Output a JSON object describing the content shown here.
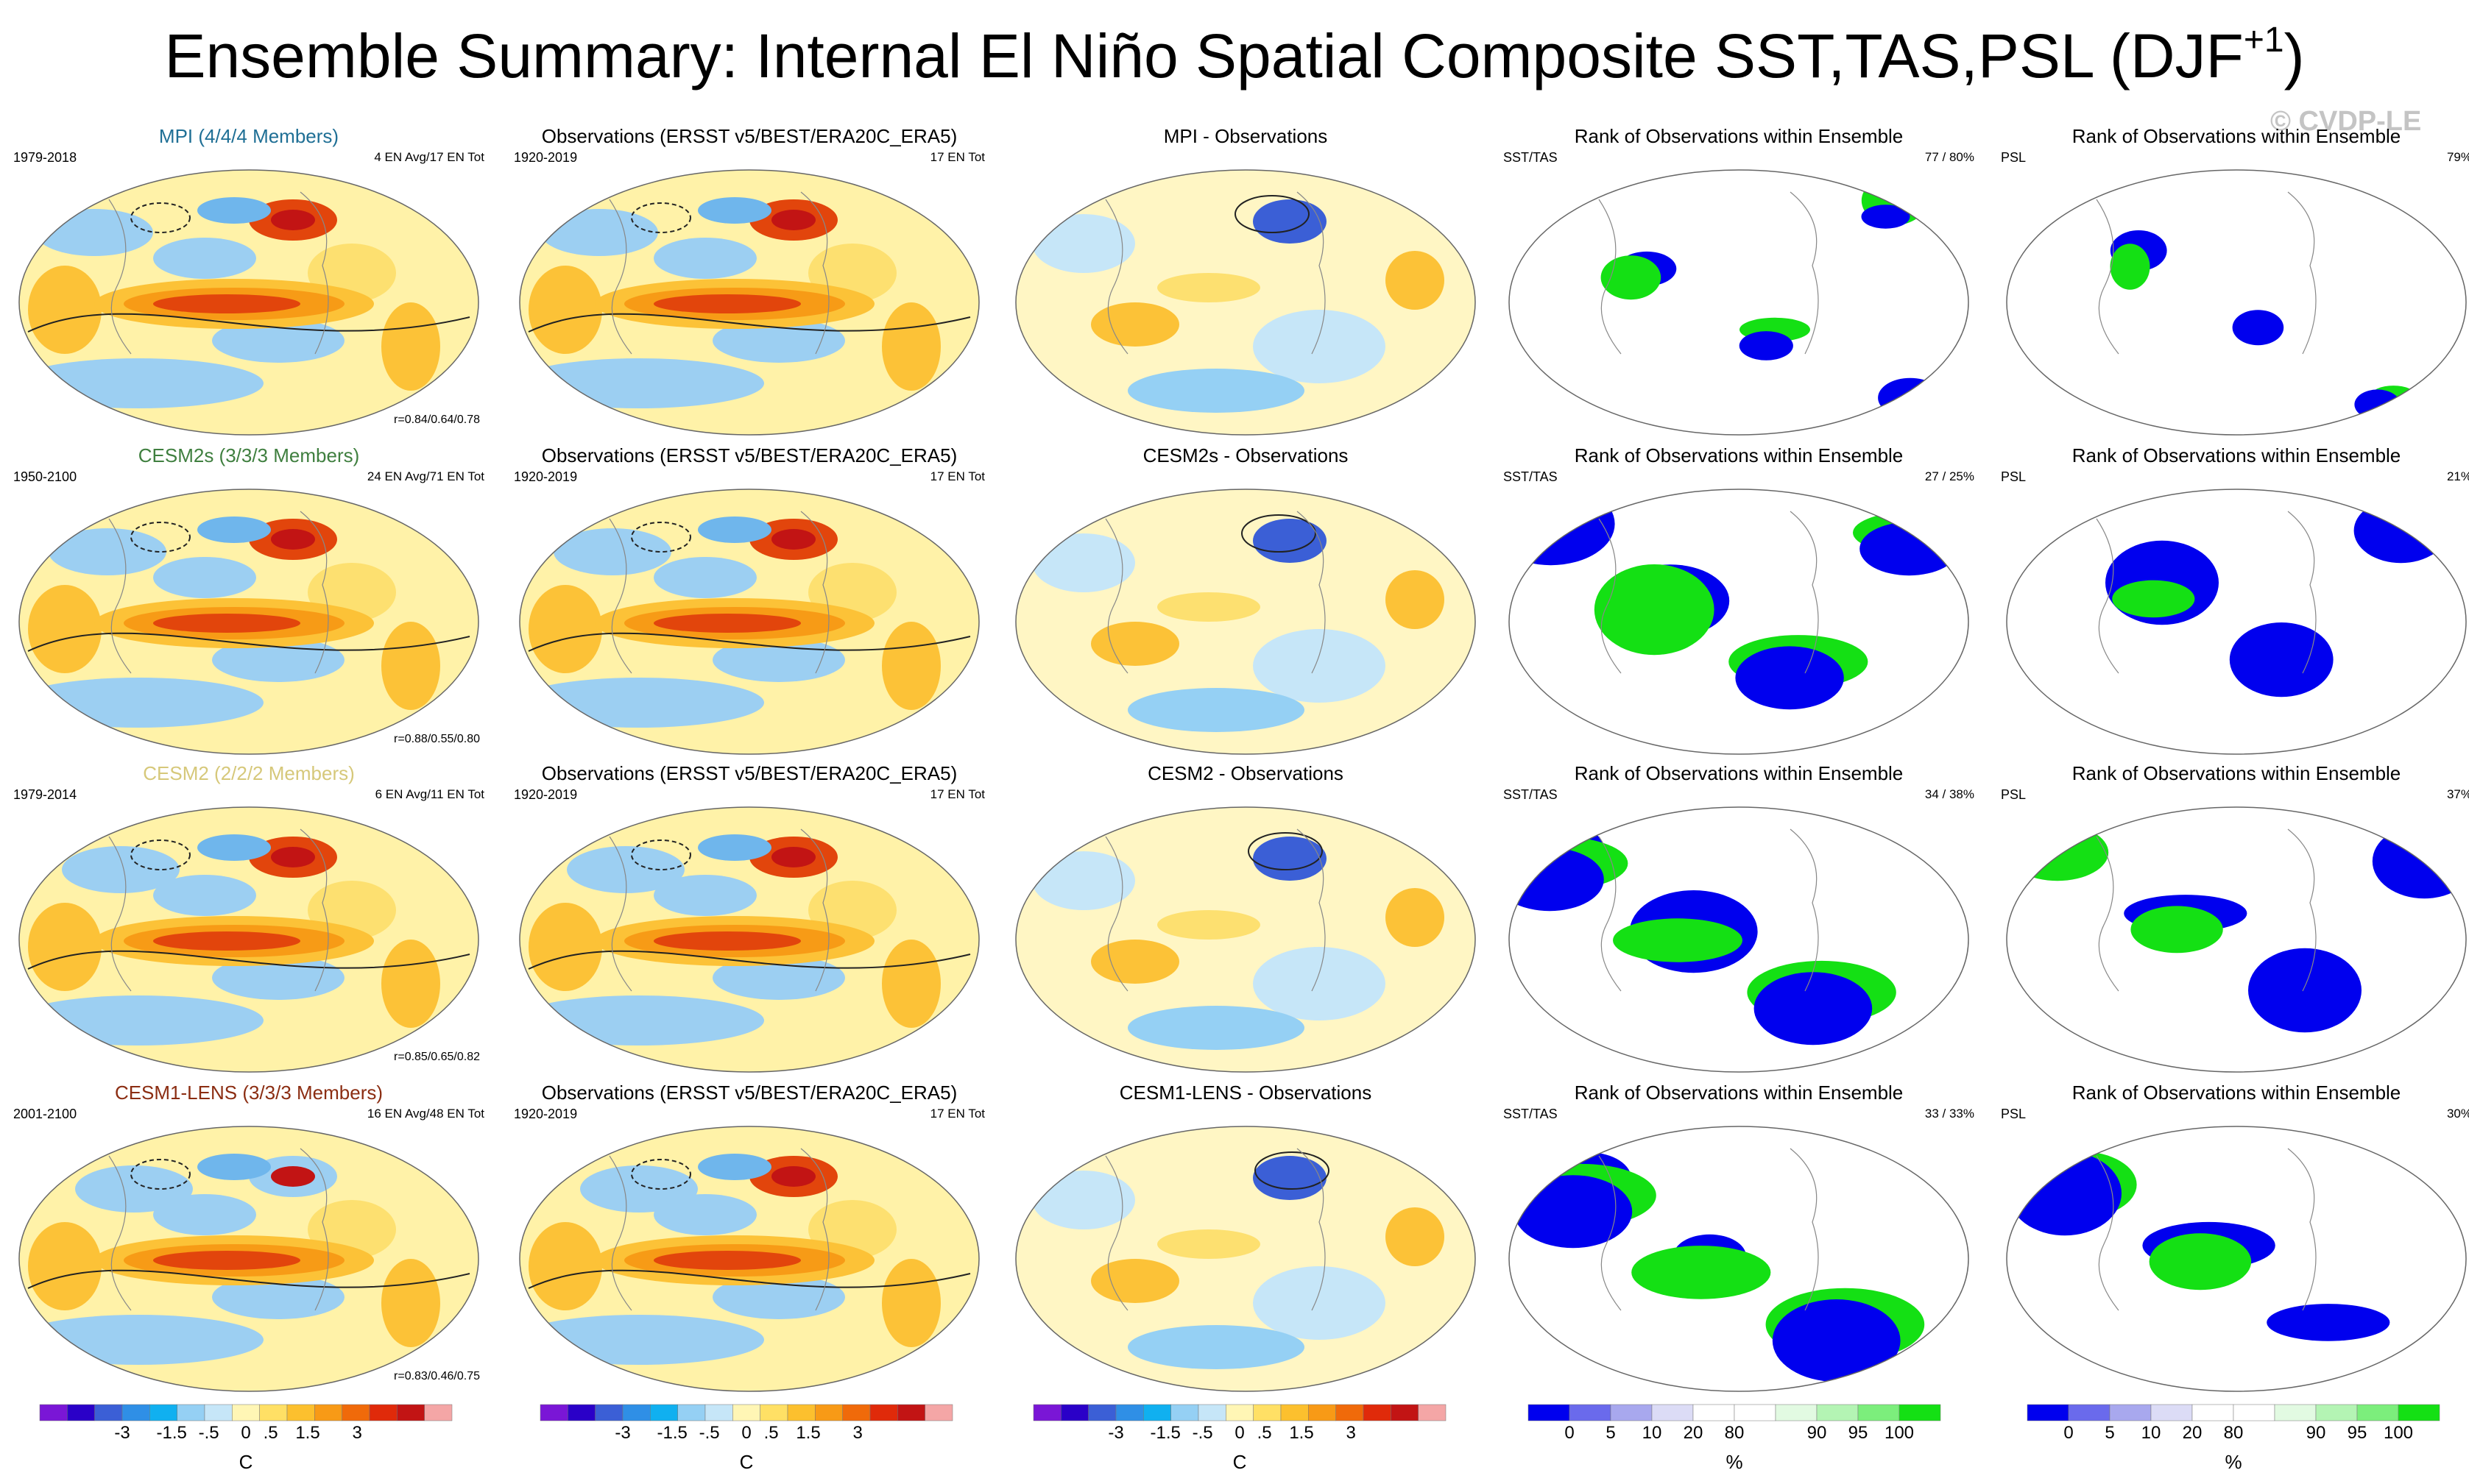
{
  "title": {
    "main": "Ensemble Summary: Internal El Niño Spatial Composite SST,TAS,PSL (DJF",
    "sup": "+1",
    "close": ")"
  },
  "copyright": "© CVDP-LE",
  "rows": [
    {
      "model": {
        "title": "MPI (4/4/4 Members)",
        "title_color": "#1f6f95",
        "years": "1979-2018",
        "count": "4 EN Avg/17 EN Tot",
        "corr": "r=0.84/0.64/0.78"
      },
      "obs": {
        "title": "Observations (ERSST v5/BEST/ERA20C_ERA5)",
        "years": "1920-2019",
        "count": "17 EN Tot"
      },
      "diff": {
        "title": "MPI - Observations"
      },
      "rank_sst": {
        "title": "Rank of Observations within Ensemble",
        "label": "SST/TAS",
        "pct": "77 /  80%"
      },
      "rank_psl": {
        "title": "Rank of Observations within Ensemble",
        "label": "PSL",
        "pct": "79%"
      }
    },
    {
      "model": {
        "title": "CESM2s (3/3/3 Members)",
        "title_color": "#3f7f3f",
        "years": "1950-2100",
        "count": "24 EN Avg/71 EN Tot",
        "corr": "r=0.88/0.55/0.80"
      },
      "obs": {
        "title": "Observations (ERSST v5/BEST/ERA20C_ERA5)",
        "years": "1920-2019",
        "count": "17 EN Tot"
      },
      "diff": {
        "title": "CESM2s - Observations"
      },
      "rank_sst": {
        "title": "Rank of Observations within Ensemble",
        "label": "SST/TAS",
        "pct": "27 /  25%"
      },
      "rank_psl": {
        "title": "Rank of Observations within Ensemble",
        "label": "PSL",
        "pct": "21%"
      }
    },
    {
      "model": {
        "title": "CESM2 (2/2/2 Members)",
        "title_color": "#d6c87a",
        "years": "1979-2014",
        "count": "6 EN Avg/11 EN Tot",
        "corr": "r=0.85/0.65/0.82"
      },
      "obs": {
        "title": "Observations (ERSST v5/BEST/ERA20C_ERA5)",
        "years": "1920-2019",
        "count": "17 EN Tot"
      },
      "diff": {
        "title": "CESM2 - Observations"
      },
      "rank_sst": {
        "title": "Rank of Observations within Ensemble",
        "label": "SST/TAS",
        "pct": "34 /  38%"
      },
      "rank_psl": {
        "title": "Rank of Observations within Ensemble",
        "label": "PSL",
        "pct": "37%"
      }
    },
    {
      "model": {
        "title": "CESM1-LENS (3/3/3 Members)",
        "title_color": "#8b2d12",
        "years": "2001-2100",
        "count": "16 EN Avg/48 EN Tot",
        "corr": "r=0.83/0.46/0.75"
      },
      "obs": {
        "title": "Observations (ERSST v5/BEST/ERA20C_ERA5)",
        "years": "1920-2019",
        "count": "17 EN Tot"
      },
      "diff": {
        "title": "CESM1-LENS - Observations"
      },
      "rank_sst": {
        "title": "Rank of Observations within Ensemble",
        "label": "SST/TAS",
        "pct": "33 /  33%"
      },
      "rank_psl": {
        "title": "Rank of Observations within Ensemble",
        "label": "PSL",
        "pct": "30%"
      }
    }
  ],
  "colorbars": {
    "temp": {
      "units": "C",
      "colors": [
        "#7a16d6",
        "#2a00c8",
        "#3b5fd6",
        "#2f8fe6",
        "#10b0f0",
        "#95d0f4",
        "#c6e6f8",
        "#fff6b5",
        "#ffe065",
        "#fcc02e",
        "#f89a16",
        "#f06a0a",
        "#e02a0a",
        "#c21414",
        "#f4a6a6"
      ],
      "ticks": [
        "-3",
        "-1.5",
        "-.5",
        "0",
        ".5",
        "1.5",
        "3"
      ]
    },
    "rank": {
      "units": "%",
      "colors": [
        "#0000ee",
        "#6a6aec",
        "#a8a8ee",
        "#dcdcf6",
        "#ffffff",
        "#ffffff",
        "#e2fae2",
        "#b4f4b4",
        "#7cee7c",
        "#14e014"
      ],
      "ticks": [
        "0",
        "5",
        "10",
        "20",
        "80",
        "90",
        "95",
        "100"
      ]
    }
  },
  "chart_data": {
    "type": "heatmap",
    "description": "Global composite maps (4 rows x 5 columns): model ensemble composite, observations, model minus observations, and rank of observations within ensemble for SST/TAS and PSL.",
    "temp_colorbar_ticks_C": [
      -3,
      -1.5,
      -0.5,
      0,
      0.5,
      1.5,
      3
    ],
    "rank_colorbar_ticks_pct": [
      0,
      5,
      10,
      20,
      80,
      90,
      95,
      100
    ],
    "pattern_correlations": [
      {
        "model": "MPI",
        "r_sst": 0.84,
        "r_tas": 0.64,
        "r_psl": 0.78
      },
      {
        "model": "CESM2s",
        "r_sst": 0.88,
        "r_tas": 0.55,
        "r_psl": 0.8
      },
      {
        "model": "CESM2",
        "r_sst": 0.85,
        "r_tas": 0.65,
        "r_psl": 0.82
      },
      {
        "model": "CESM1-LENS",
        "r_sst": 0.83,
        "r_tas": 0.46,
        "r_psl": 0.75
      }
    ],
    "rank_percent_sst_tas": [
      [
        77,
        80
      ],
      [
        27,
        25
      ],
      [
        34,
        38
      ],
      [
        33,
        33
      ]
    ],
    "rank_percent_psl": [
      79,
      21,
      37,
      30
    ]
  }
}
